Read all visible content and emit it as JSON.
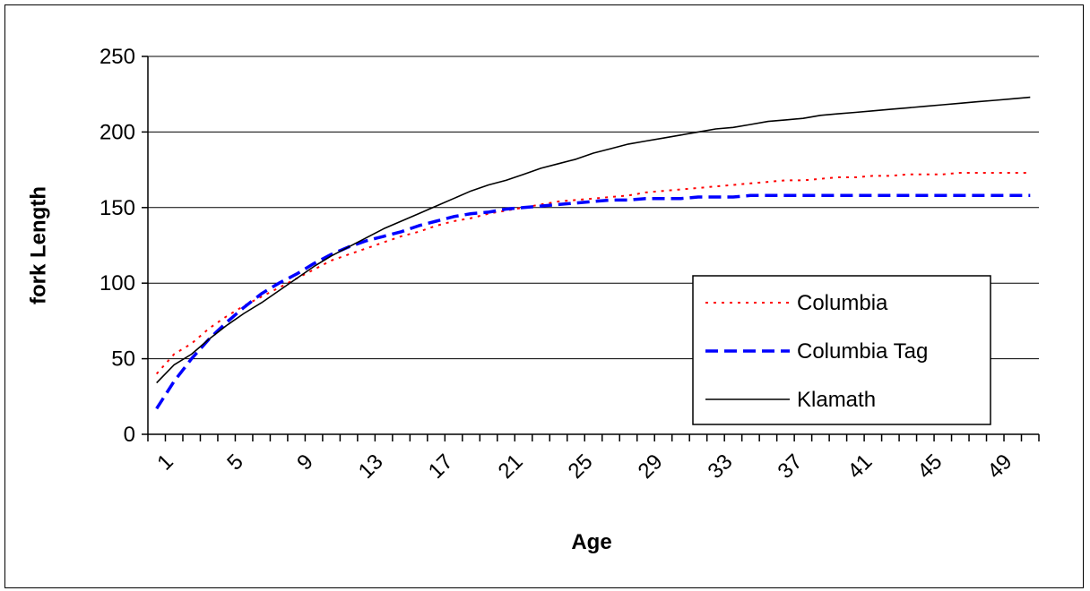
{
  "chart_data": {
    "type": "line",
    "title": "",
    "xlabel": "Age",
    "ylabel": "fork Length",
    "x": [
      1,
      2,
      3,
      4,
      5,
      6,
      7,
      8,
      9,
      10,
      11,
      12,
      13,
      14,
      15,
      16,
      17,
      18,
      19,
      20,
      21,
      22,
      23,
      24,
      25,
      26,
      27,
      28,
      29,
      30,
      31,
      32,
      33,
      34,
      35,
      36,
      37,
      38,
      39,
      40,
      41,
      42,
      43,
      44,
      45,
      46,
      47,
      48,
      49,
      50,
      51
    ],
    "x_tick_labels": [
      "1",
      "5",
      "9",
      "13",
      "17",
      "21",
      "25",
      "29",
      "33",
      "37",
      "41",
      "45",
      "49"
    ],
    "ylim": [
      0,
      250
    ],
    "y_ticks": [
      0,
      50,
      100,
      150,
      200,
      250
    ],
    "grid": "horizontal",
    "legend_position": "right-center",
    "series": [
      {
        "name": "Columbia",
        "color": "#ff0000",
        "style": "dotted",
        "values": [
          40,
          53,
          60,
          70,
          78,
          85,
          91,
          97,
          103,
          109,
          115,
          119,
          123,
          127,
          131,
          134,
          138,
          141,
          143,
          146,
          148,
          150,
          152,
          154,
          155,
          156,
          157,
          158,
          160,
          161,
          162,
          163,
          164,
          165,
          166,
          167,
          168,
          168,
          169,
          170,
          170,
          171,
          171,
          172,
          172,
          172,
          173,
          173,
          173,
          173,
          173
        ]
      },
      {
        "name": "Columbia Tag",
        "color": "#0000ff",
        "style": "dashed",
        "values": [
          17,
          35,
          50,
          63,
          74,
          84,
          93,
          100,
          106,
          113,
          119,
          124,
          128,
          131,
          134,
          138,
          141,
          144,
          146,
          147,
          149,
          150,
          151,
          152,
          153,
          154,
          155,
          155,
          156,
          156,
          156,
          157,
          157,
          157,
          158,
          158,
          158,
          158,
          158,
          158,
          158,
          158,
          158,
          158,
          158,
          158,
          158,
          158,
          158,
          158,
          158
        ]
      },
      {
        "name": "Klamath",
        "color": "#000000",
        "style": "solid",
        "values": [
          34,
          46,
          53,
          63,
          72,
          80,
          87,
          95,
          103,
          111,
          118,
          124,
          130,
          136,
          141,
          146,
          151,
          156,
          161,
          165,
          168,
          172,
          176,
          179,
          182,
          186,
          189,
          192,
          194,
          196,
          198,
          200,
          202,
          203,
          205,
          207,
          208,
          209,
          211,
          212,
          213,
          214,
          215,
          216,
          217,
          218,
          219,
          220,
          221,
          222,
          223
        ]
      }
    ]
  }
}
